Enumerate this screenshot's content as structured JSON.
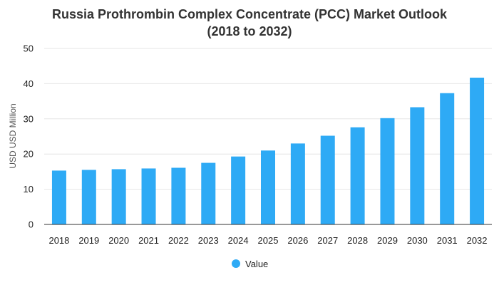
{
  "chart_data": {
    "type": "bar",
    "title_lines": [
      "Russia Prothrombin Complex Concentrate (PCC) Market Outlook",
      "(2018 to 2032)"
    ],
    "xlabel": "",
    "ylabel": "USD USD Million",
    "categories": [
      "2018",
      "2019",
      "2020",
      "2021",
      "2022",
      "2023",
      "2024",
      "2025",
      "2026",
      "2027",
      "2028",
      "2029",
      "2030",
      "2031",
      "2032"
    ],
    "series": [
      {
        "name": "Value",
        "color": "#2eaaf5",
        "values": [
          15.3,
          15.5,
          15.7,
          15.9,
          16.1,
          17.5,
          19.3,
          21.0,
          23.0,
          25.2,
          27.6,
          30.2,
          33.3,
          37.3,
          41.7
        ]
      }
    ],
    "ylim": [
      0,
      50
    ],
    "yticks": [
      0,
      10,
      20,
      30,
      40,
      50
    ],
    "grid": true,
    "legend_position": "bottom-center"
  }
}
